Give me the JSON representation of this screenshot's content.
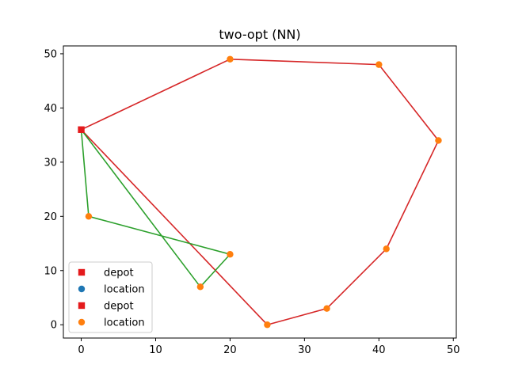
{
  "chart_data": {
    "type": "scatter",
    "title": "two-opt (NN)",
    "xlabel": "",
    "ylabel": "",
    "xlim": [
      -2.4,
      50.4
    ],
    "ylim": [
      -2.45,
      51.45
    ],
    "xticks": [
      0,
      10,
      20,
      30,
      40,
      50
    ],
    "yticks": [
      0,
      10,
      20,
      30,
      40,
      50
    ],
    "grid": false,
    "legend_position": "lower-left",
    "legend": [
      {
        "label": "depot",
        "marker": "square",
        "color": "#e41a1c"
      },
      {
        "label": "location",
        "marker": "circle",
        "color": "#1f77b4"
      },
      {
        "label": "depot",
        "marker": "square",
        "color": "#e41a1c"
      },
      {
        "label": "location",
        "marker": "circle",
        "color": "#ff7f0e"
      }
    ],
    "depot": {
      "x": 0,
      "y": 36,
      "color": "#e41a1c"
    },
    "locations": [
      {
        "x": 20,
        "y": 49
      },
      {
        "x": 40,
        "y": 48
      },
      {
        "x": 48,
        "y": 34
      },
      {
        "x": 41,
        "y": 14
      },
      {
        "x": 33,
        "y": 3
      },
      {
        "x": 25,
        "y": 0
      },
      {
        "x": 1,
        "y": 20
      },
      {
        "x": 20,
        "y": 13
      },
      {
        "x": 16,
        "y": 7
      }
    ],
    "location_color": "#ff7f0e",
    "routes": [
      {
        "color": "#d62728",
        "points": [
          [
            0,
            36
          ],
          [
            20,
            49
          ],
          [
            40,
            48
          ],
          [
            48,
            34
          ],
          [
            41,
            14
          ],
          [
            33,
            3
          ],
          [
            25,
            0
          ],
          [
            0,
            36
          ]
        ]
      },
      {
        "color": "#2ca02c",
        "points": [
          [
            0,
            36
          ],
          [
            1,
            20
          ],
          [
            20,
            13
          ],
          [
            16,
            7
          ],
          [
            0,
            36
          ]
        ]
      }
    ]
  }
}
